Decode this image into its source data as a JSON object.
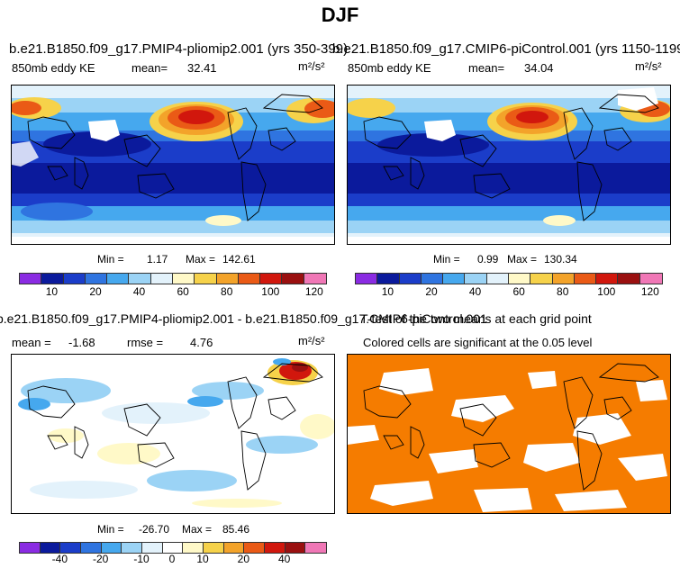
{
  "title": "DJF",
  "panels": {
    "tl": {
      "case": "b.e21.B1850.f09_g17.PMIP4-pliomip2.001 (yrs 350-399)",
      "var": "850mb eddy KE",
      "mean_label": "mean=",
      "mean_value": "32.41",
      "units": "m²/s²",
      "min_label": "Min =",
      "min_value": "1.17",
      "max_label": "Max =",
      "max_value": "142.61",
      "colorbar_colors": [
        "#8a2be2",
        "#0b1a9c",
        "#1b3dc9",
        "#2f74e0",
        "#46a8ee",
        "#9bd3f5",
        "#e3f2fb",
        "#fff9c8",
        "#f6d24a",
        "#f3a32a",
        "#ea5a16",
        "#d1170d",
        "#9a1010",
        "#f077b6"
      ],
      "colorbar_ticks": [
        "10",
        "20",
        "40",
        "60",
        "80",
        "100",
        "120"
      ]
    },
    "tr": {
      "case": "b.e21.B1850.f09_g17.CMIP6-piControl.001 (yrs 1150-1199)",
      "var": "850mb eddy KE",
      "mean_label": "mean=",
      "mean_value": "34.04",
      "units": "m²/s²",
      "min_label": "Min =",
      "min_value": "0.99",
      "max_label": "Max =",
      "max_value": "130.34",
      "colorbar_ticks": [
        "10",
        "20",
        "40",
        "60",
        "80",
        "100",
        "120"
      ]
    },
    "bl": {
      "case": "b.e21.B1850.f09_g17.PMIP4-pliomip2.001 - b.e21.B1850.f09_g17.CMIP6-piControl.001",
      "mean_label": "mean =",
      "mean_value": "-1.68",
      "rmse_label": "rmse =",
      "rmse_value": "4.76",
      "units": "m²/s²",
      "min_label": "Min =",
      "min_value": "-26.70",
      "max_label": "Max =",
      "max_value": "85.46",
      "colorbar_colors": [
        "#8a2be2",
        "#0b1a9c",
        "#1b3dc9",
        "#2f74e0",
        "#46a8ee",
        "#9bd3f5",
        "#e3f2fb",
        "#ffffff",
        "#fff9c8",
        "#f6d24a",
        "#f3a32a",
        "#ea5a16",
        "#d1170d",
        "#9a1010",
        "#f077b6"
      ],
      "colorbar_ticks": [
        "-40",
        "-20",
        "-10",
        "0",
        "10",
        "20",
        "40"
      ]
    },
    "br": {
      "title": "T-test of the two means at each grid point",
      "subtitle": "Colored cells are significant at the 0.05 level"
    }
  }
}
